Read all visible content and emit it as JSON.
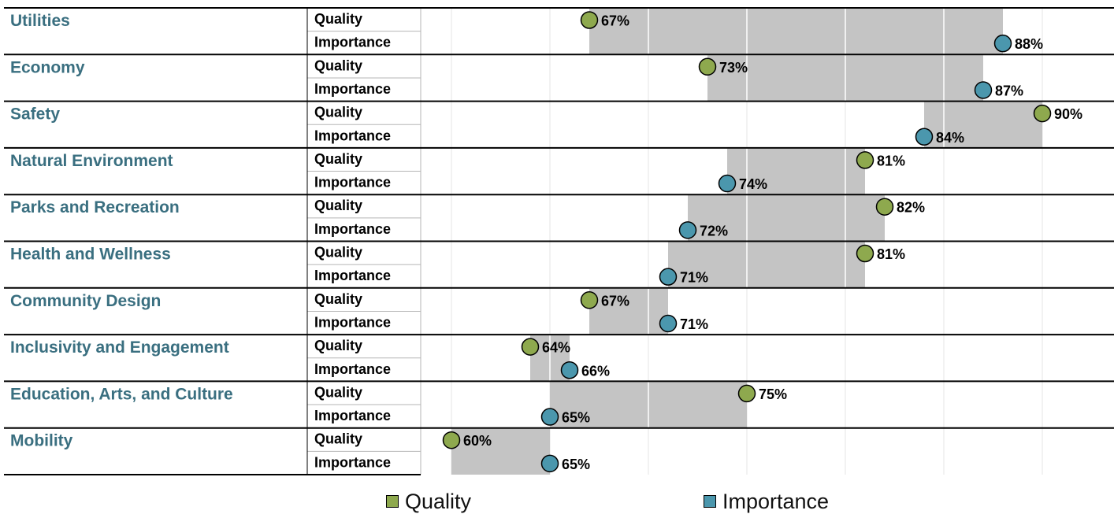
{
  "chart_data": {
    "type": "dumbbell",
    "row_labels": [
      "Quality",
      "Importance"
    ],
    "categories": [
      "Utilities",
      "Economy",
      "Safety",
      "Natural Environment",
      "Parks and Recreation",
      "Health and Wellness",
      "Community Design",
      "Inclusivity and Engagement",
      "Education, Arts, and Culture",
      "Mobility"
    ],
    "series": [
      {
        "name": "Quality",
        "color": "#8ea94e",
        "values": [
          67,
          73,
          90,
          81,
          82,
          81,
          67,
          64,
          75,
          60
        ]
      },
      {
        "name": "Importance",
        "color": "#4b97ad",
        "values": [
          88,
          87,
          84,
          74,
          72,
          71,
          71,
          66,
          65,
          65
        ]
      }
    ],
    "value_suffix": "%",
    "xlim": [
      59,
      93
    ],
    "grid": true,
    "legend_position": "bottom",
    "category_color": "#3a6f80",
    "range_bar_color": "#c4c4c4"
  }
}
